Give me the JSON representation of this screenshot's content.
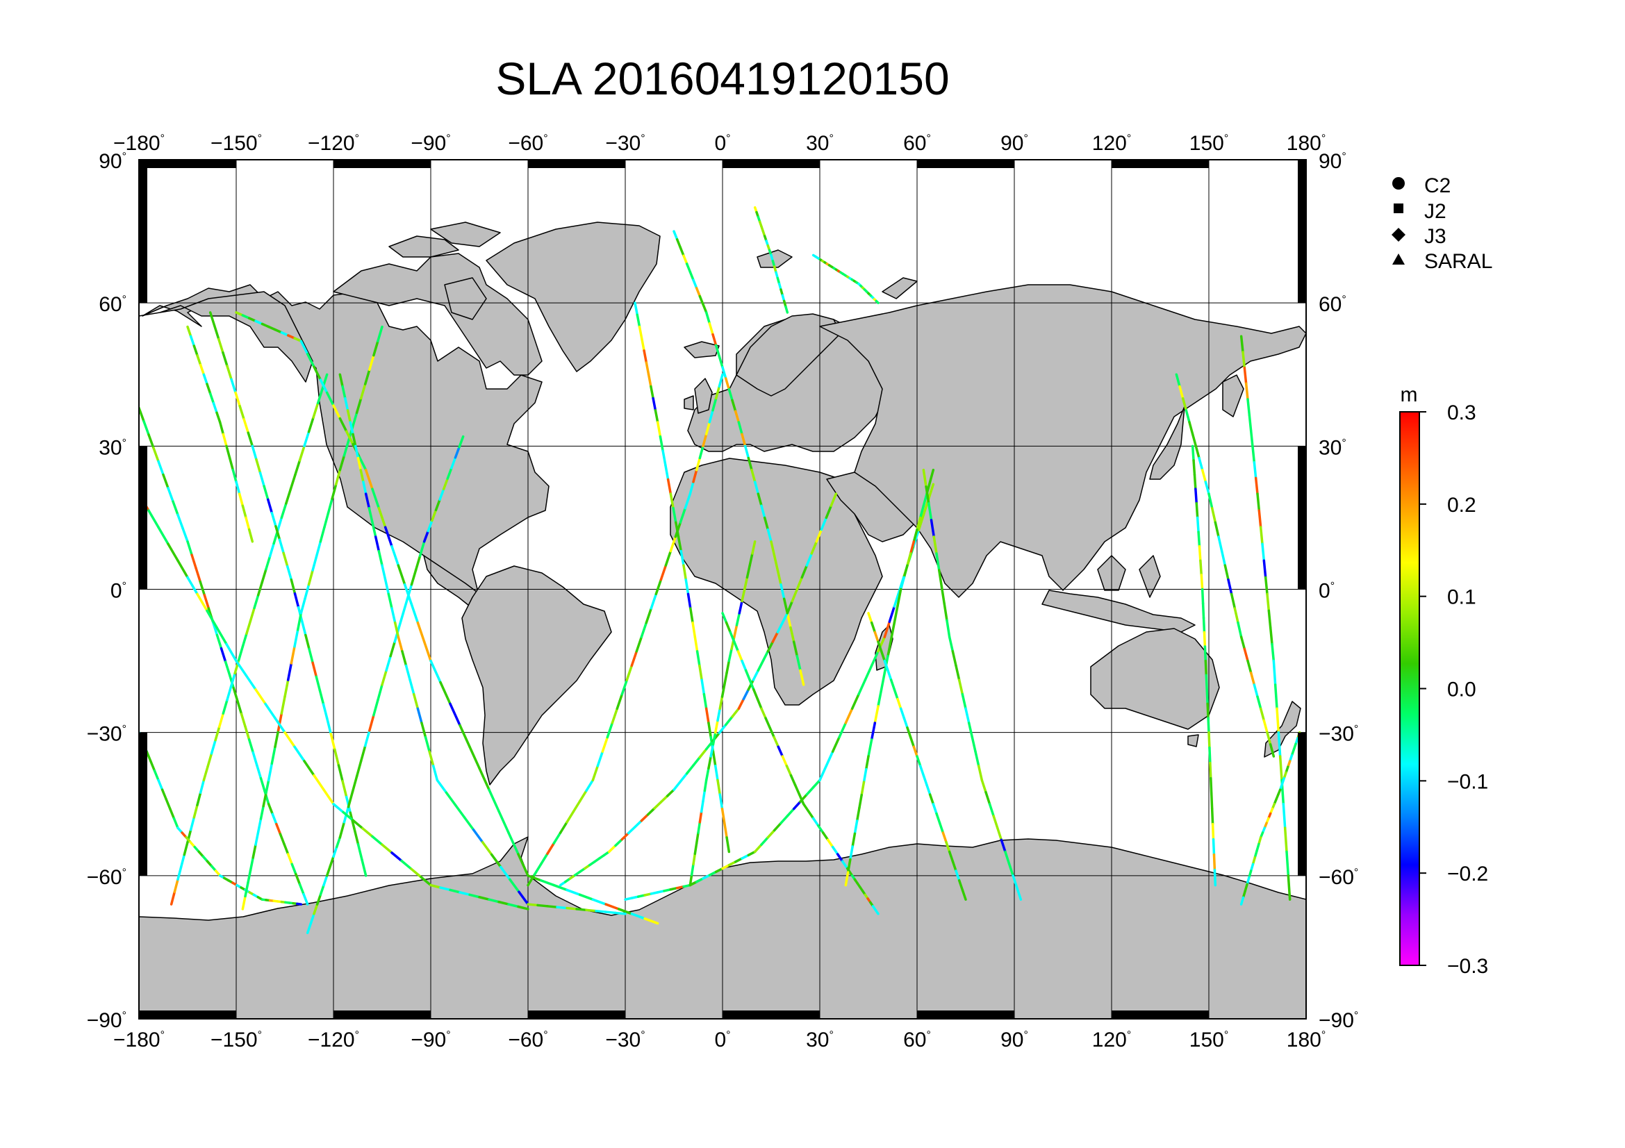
{
  "title": "SLA 20160419120150",
  "map": {
    "projection": "equirectangular",
    "lon_range": [
      -180,
      180
    ],
    "lat_range": [
      -90,
      90
    ],
    "grid_interval_deg": 30,
    "lon_tick_labels": [
      "-180",
      "-150",
      "-120",
      "-90",
      "-60",
      "-30",
      "0",
      "30",
      "60",
      "90",
      "120",
      "150",
      "180"
    ],
    "lat_tick_labels": [
      "90",
      "60",
      "30",
      "0",
      "-30",
      "-60",
      "-90"
    ],
    "degree_symbol": "°",
    "land_color": "#bebebe",
    "ocean_color": "#ffffff",
    "coastline_color": "#000000"
  },
  "legend": {
    "placement": "top-right",
    "items": [
      {
        "label": "C2",
        "marker": "circle"
      },
      {
        "label": "J2",
        "marker": "square"
      },
      {
        "label": "J3",
        "marker": "diamond"
      },
      {
        "label": "SARAL",
        "marker": "triangle"
      }
    ]
  },
  "colorbar": {
    "unit": "m",
    "min": -0.3,
    "max": 0.3,
    "tick_labels": [
      "0.3",
      "0.2",
      "0.1",
      "0.0",
      "−0.1",
      "−0.2",
      "−0.3"
    ],
    "colors": [
      "#ff00ff",
      "#9900ff",
      "#0000ff",
      "#0088ff",
      "#00ffff",
      "#00ff66",
      "#33cc00",
      "#99ee00",
      "#ffff00",
      "#ffaa00",
      "#ff5500",
      "#ff0000"
    ]
  },
  "tracks": [
    {
      "lon": [
        -180,
        -165,
        -152,
        -140,
        -128
      ],
      "lat": [
        38,
        10,
        -18,
        -45,
        -66
      ]
    },
    {
      "lon": [
        -170,
        -160,
        -148,
        -136,
        -122
      ],
      "lat": [
        -66,
        -40,
        -12,
        15,
        45
      ]
    },
    {
      "lon": [
        -158,
        -145,
        -133,
        -122,
        -110
      ],
      "lat": [
        58,
        30,
        2,
        -27,
        -60
      ]
    },
    {
      "lon": [
        -180,
        -168,
        -155,
        -142,
        -130
      ],
      "lat": [
        -30,
        -50,
        -60,
        -65,
        -66
      ]
    },
    {
      "lon": [
        -148,
        -140,
        -130,
        -118,
        -105
      ],
      "lat": [
        -67,
        -40,
        -5,
        25,
        55
      ]
    },
    {
      "lon": [
        -128,
        -118,
        -105,
        -92,
        -80
      ],
      "lat": [
        -72,
        -52,
        -20,
        10,
        32
      ]
    },
    {
      "lon": [
        -150,
        -130,
        -110,
        -90,
        -60,
        -20
      ],
      "lat": [
        58,
        52,
        25,
        -15,
        -60,
        -70
      ]
    },
    {
      "lon": [
        -118,
        -110,
        -100,
        -88,
        -60,
        -30
      ],
      "lat": [
        45,
        20,
        -10,
        -40,
        -66,
        -68
      ]
    },
    {
      "lon": [
        -180,
        -150,
        -120,
        -90,
        -60
      ],
      "lat": [
        20,
        -15,
        -45,
        -62,
        -67
      ]
    },
    {
      "lon": [
        -60,
        -40,
        -25,
        -10,
        0
      ],
      "lat": [
        -62,
        -40,
        -10,
        20,
        45
      ]
    },
    {
      "lon": [
        -27,
        -20,
        -12,
        -5,
        2
      ],
      "lat": [
        60,
        35,
        5,
        -25,
        -55
      ]
    },
    {
      "lon": [
        -15,
        -5,
        5,
        15,
        25
      ],
      "lat": [
        75,
        58,
        35,
        10,
        -20
      ]
    },
    {
      "lon": [
        -50,
        -35,
        -15,
        5,
        20,
        35
      ],
      "lat": [
        -62,
        -55,
        -42,
        -25,
        -5,
        20
      ]
    },
    {
      "lon": [
        -30,
        -10,
        10,
        30,
        50,
        65
      ],
      "lat": [
        -65,
        -62,
        -55,
        -40,
        -10,
        22
      ]
    },
    {
      "lon": [
        -10,
        -5,
        2,
        10
      ],
      "lat": [
        -62,
        -40,
        -15,
        10
      ]
    },
    {
      "lon": [
        0,
        12,
        25,
        40,
        48
      ],
      "lat": [
        -5,
        -25,
        -45,
        -60,
        -68
      ]
    },
    {
      "lon": [
        65,
        55,
        45,
        38
      ],
      "lat": [
        25,
        0,
        -35,
        -62
      ]
    },
    {
      "lon": [
        62,
        70,
        80,
        92
      ],
      "lat": [
        25,
        -10,
        -40,
        -65
      ]
    },
    {
      "lon": [
        45,
        55,
        65,
        75
      ],
      "lat": [
        -5,
        -25,
        -45,
        -65
      ]
    },
    {
      "lon": [
        140,
        150,
        160,
        170
      ],
      "lat": [
        45,
        20,
        -10,
        -35
      ]
    },
    {
      "lon": [
        160,
        165,
        170,
        175
      ],
      "lat": [
        53,
        20,
        -15,
        -65
      ]
    },
    {
      "lon": [
        178,
        172,
        166,
        160
      ],
      "lat": [
        -30,
        -42,
        -52,
        -66
      ]
    },
    {
      "lon": [
        145,
        148,
        150,
        152
      ],
      "lat": [
        30,
        0,
        -30,
        -62
      ]
    },
    {
      "lon": [
        28,
        35,
        42,
        48
      ],
      "lat": [
        70,
        67,
        64,
        60
      ]
    },
    {
      "lon": [
        10,
        15,
        20
      ],
      "lat": [
        80,
        70,
        58
      ]
    },
    {
      "lon": [
        -165,
        -155,
        -145
      ],
      "lat": [
        55,
        35,
        10
      ]
    }
  ]
}
